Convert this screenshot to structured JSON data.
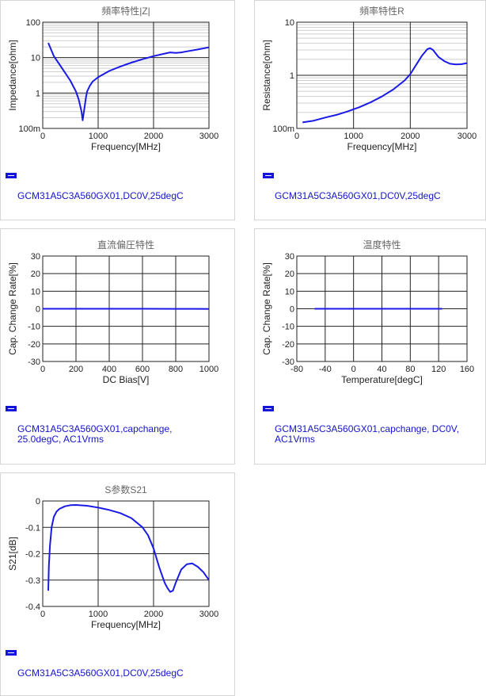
{
  "panels": [
    {
      "legend": "GCM31A5C3A560GX01,DC0V,25degC",
      "chart": {
        "type": "line",
        "title": "頻率特性|Z|",
        "xlabel": "Frequency[MHz]",
        "ylabel": "Impedance[ohm]",
        "xscale": "linear",
        "yscale": "log",
        "xlim": [
          0,
          3000
        ],
        "ylim": [
          0.1,
          100
        ],
        "xticks": [
          0,
          1000,
          2000,
          3000
        ],
        "xtick_labels": [
          "0",
          "1000",
          "2000",
          "3000"
        ],
        "yticks": [
          0.1,
          1,
          10,
          100
        ],
        "ytick_labels": [
          "100m",
          "1",
          "10",
          "100"
        ],
        "grid": true,
        "line_color": "#1a1ae6",
        "series": [
          {
            "x": [
              100,
              200,
              300,
              400,
              500,
              600,
              650,
              700,
              720,
              750,
              780,
              800,
              850,
              900,
              1000,
              1200,
              1400,
              1600,
              1800,
              2000,
              2200,
              2300,
              2400,
              2500,
              2600,
              2800,
              3000
            ],
            "y": [
              26,
              11,
              6.5,
              3.8,
              2.2,
              1.1,
              0.65,
              0.3,
              0.17,
              0.35,
              0.75,
              1.1,
              1.6,
              2.1,
              2.8,
              4.2,
              5.6,
              7.2,
              9,
              11,
              13,
              14,
              13.5,
              14,
              15,
              17,
              19.5
            ]
          }
        ]
      }
    },
    {
      "legend": "GCM31A5C3A560GX01,DC0V,25degC",
      "chart": {
        "type": "line",
        "title": "頻率特性R",
        "xlabel": "Frequency[MHz]",
        "ylabel": "Resistance[ohm]",
        "xscale": "linear",
        "yscale": "log",
        "xlim": [
          0,
          3000
        ],
        "ylim": [
          0.1,
          10
        ],
        "xticks": [
          0,
          1000,
          2000,
          3000
        ],
        "xtick_labels": [
          "0",
          "1000",
          "2000",
          "3000"
        ],
        "yticks": [
          0.1,
          1,
          10
        ],
        "ytick_labels": [
          "100m",
          "1",
          "10"
        ],
        "grid": true,
        "line_color": "#1a1ae6",
        "series": [
          {
            "x": [
              100,
              300,
              500,
              700,
              900,
              1100,
              1300,
              1500,
              1700,
              1900,
              2000,
              2100,
              2200,
              2300,
              2350,
              2400,
              2500,
              2600,
              2700,
              2800,
              2900,
              3000
            ],
            "y": [
              0.13,
              0.14,
              0.16,
              0.18,
              0.21,
              0.25,
              0.31,
              0.4,
              0.54,
              0.8,
              1.05,
              1.55,
              2.3,
              3.1,
              3.25,
              3.0,
              2.2,
              1.85,
              1.65,
              1.6,
              1.62,
              1.7
            ]
          }
        ]
      }
    },
    {
      "legend": "GCM31A5C3A560GX01,capchange,\n25.0degC, AC1Vrms",
      "chart": {
        "type": "line",
        "title": "直流偏圧特性",
        "xlabel": "DC Bias[V]",
        "ylabel": "Cap. Change Rate[%]",
        "xscale": "linear",
        "yscale": "linear",
        "xlim": [
          0,
          1000
        ],
        "ylim": [
          -30,
          30
        ],
        "xticks": [
          0,
          200,
          400,
          600,
          800,
          1000
        ],
        "xtick_labels": [
          "0",
          "200",
          "400",
          "600",
          "800",
          "1000"
        ],
        "yticks": [
          -30,
          -20,
          -10,
          0,
          10,
          20,
          30
        ],
        "ytick_labels": [
          "-30",
          "-20",
          "-10",
          "0",
          "10",
          "20",
          "30"
        ],
        "grid": true,
        "line_color": "#1a1ae6",
        "series": [
          {
            "x": [
              0,
              200,
              400,
              600,
              800,
              1000
            ],
            "y": [
              0,
              0,
              0,
              0,
              -0.05,
              -0.1
            ]
          }
        ]
      }
    },
    {
      "legend": "GCM31A5C3A560GX01,capchange, DC0V,\nAC1Vrms",
      "chart": {
        "type": "line",
        "title": "温度特性",
        "xlabel": "Temperature[degC]",
        "ylabel": "Cap. Change Rate[%]",
        "xscale": "linear",
        "yscale": "linear",
        "xlim": [
          -80,
          160
        ],
        "ylim": [
          -30,
          30
        ],
        "xticks": [
          -80,
          -40,
          0,
          40,
          80,
          120,
          160
        ],
        "xtick_labels": [
          "-80",
          "-40",
          "0",
          "40",
          "80",
          "120",
          "160"
        ],
        "yticks": [
          -30,
          -20,
          -10,
          0,
          10,
          20,
          30
        ],
        "ytick_labels": [
          "-30",
          "-20",
          "-10",
          "0",
          "10",
          "20",
          "30"
        ],
        "grid": true,
        "line_color": "#1a1ae6",
        "series": [
          {
            "x": [
              -55,
              0,
              25,
              60,
              125
            ],
            "y": [
              0,
              0,
              0,
              0,
              0
            ]
          }
        ]
      }
    },
    {
      "legend": "GCM31A5C3A560GX01,DC0V,25degC",
      "chart": {
        "type": "line",
        "title": "S参数S21",
        "xlabel": "Frequency[MHz]",
        "ylabel": "S21[dB]",
        "xscale": "linear",
        "yscale": "linear",
        "xlim": [
          0,
          3000
        ],
        "ylim": [
          -0.4,
          0
        ],
        "xticks": [
          0,
          1000,
          2000,
          3000
        ],
        "xtick_labels": [
          "0",
          "1000",
          "2000",
          "3000"
        ],
        "yticks": [
          -0.4,
          -0.3,
          -0.2,
          -0.1,
          0
        ],
        "ytick_labels": [
          "-0.4",
          "-0.3",
          "-0.2",
          "-0.1",
          "0"
        ],
        "grid": true,
        "line_color": "#1a1ae6",
        "series": [
          {
            "x": [
              100,
              110,
              130,
              160,
              200,
              250,
              300,
              400,
              500,
              600,
              800,
              1000,
              1200,
              1400,
              1600,
              1800,
              1900,
              2000,
              2100,
              2200,
              2250,
              2300,
              2350,
              2400,
              2500,
              2600,
              2700,
              2800,
              2900,
              3000
            ],
            "y": [
              -0.34,
              -0.25,
              -0.17,
              -0.1,
              -0.06,
              -0.04,
              -0.03,
              -0.02,
              -0.016,
              -0.015,
              -0.018,
              -0.025,
              -0.034,
              -0.046,
              -0.065,
              -0.1,
              -0.13,
              -0.18,
              -0.25,
              -0.31,
              -0.33,
              -0.345,
              -0.34,
              -0.31,
              -0.26,
              -0.24,
              -0.237,
              -0.25,
              -0.27,
              -0.3
            ]
          }
        ]
      }
    }
  ]
}
